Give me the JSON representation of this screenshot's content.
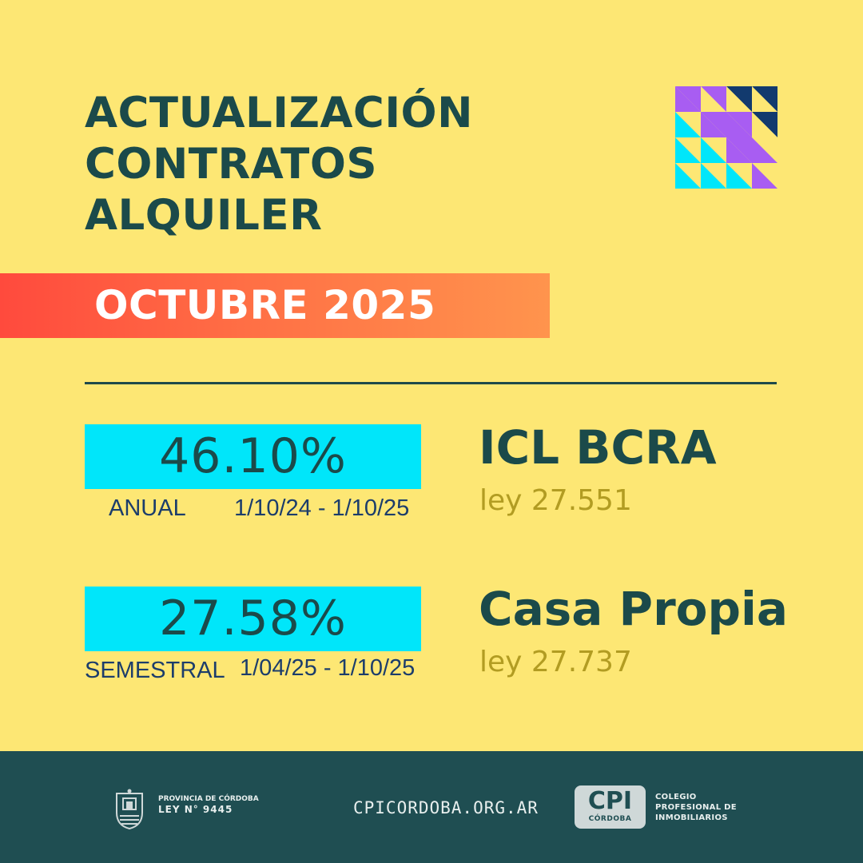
{
  "title": {
    "line1": "ACTUALIZACIÓN",
    "line2": "CONTRATOS",
    "line3": "ALQUILER"
  },
  "month": "OCTUBRE 2025",
  "rates": [
    {
      "value": "46.10%",
      "period_label": "ANUAL",
      "range": "1/10/24 - 1/10/25",
      "index_name": "ICL  BCRA",
      "law": "ley 27.551"
    },
    {
      "value": "27.58%",
      "period_label": "SEMESTRAL",
      "range": "1/04/25 - 1/10/25",
      "index_name": "Casa Propia",
      "law": "ley 27.737"
    }
  ],
  "footer": {
    "province_line": "PROVINCIA DE CÓRDOBA",
    "province_law": "LEY N° 9445",
    "website": "CPICORDOBA.ORG.AR",
    "badge_main": "CPI",
    "badge_sub": "CÓRDOBA",
    "college_line1": "COLEGIO",
    "college_line2": "PROFESIONAL DE",
    "college_line3": "INMOBILIARIOS"
  },
  "colors": {
    "background": "#fde774",
    "title_text": "#1b4a4a",
    "rate_box": "#00e6fa",
    "banner_start": "#ff4a3d",
    "banner_end": "#ff944d",
    "law_text": "#b29c22",
    "footer": "#1f4e52"
  }
}
